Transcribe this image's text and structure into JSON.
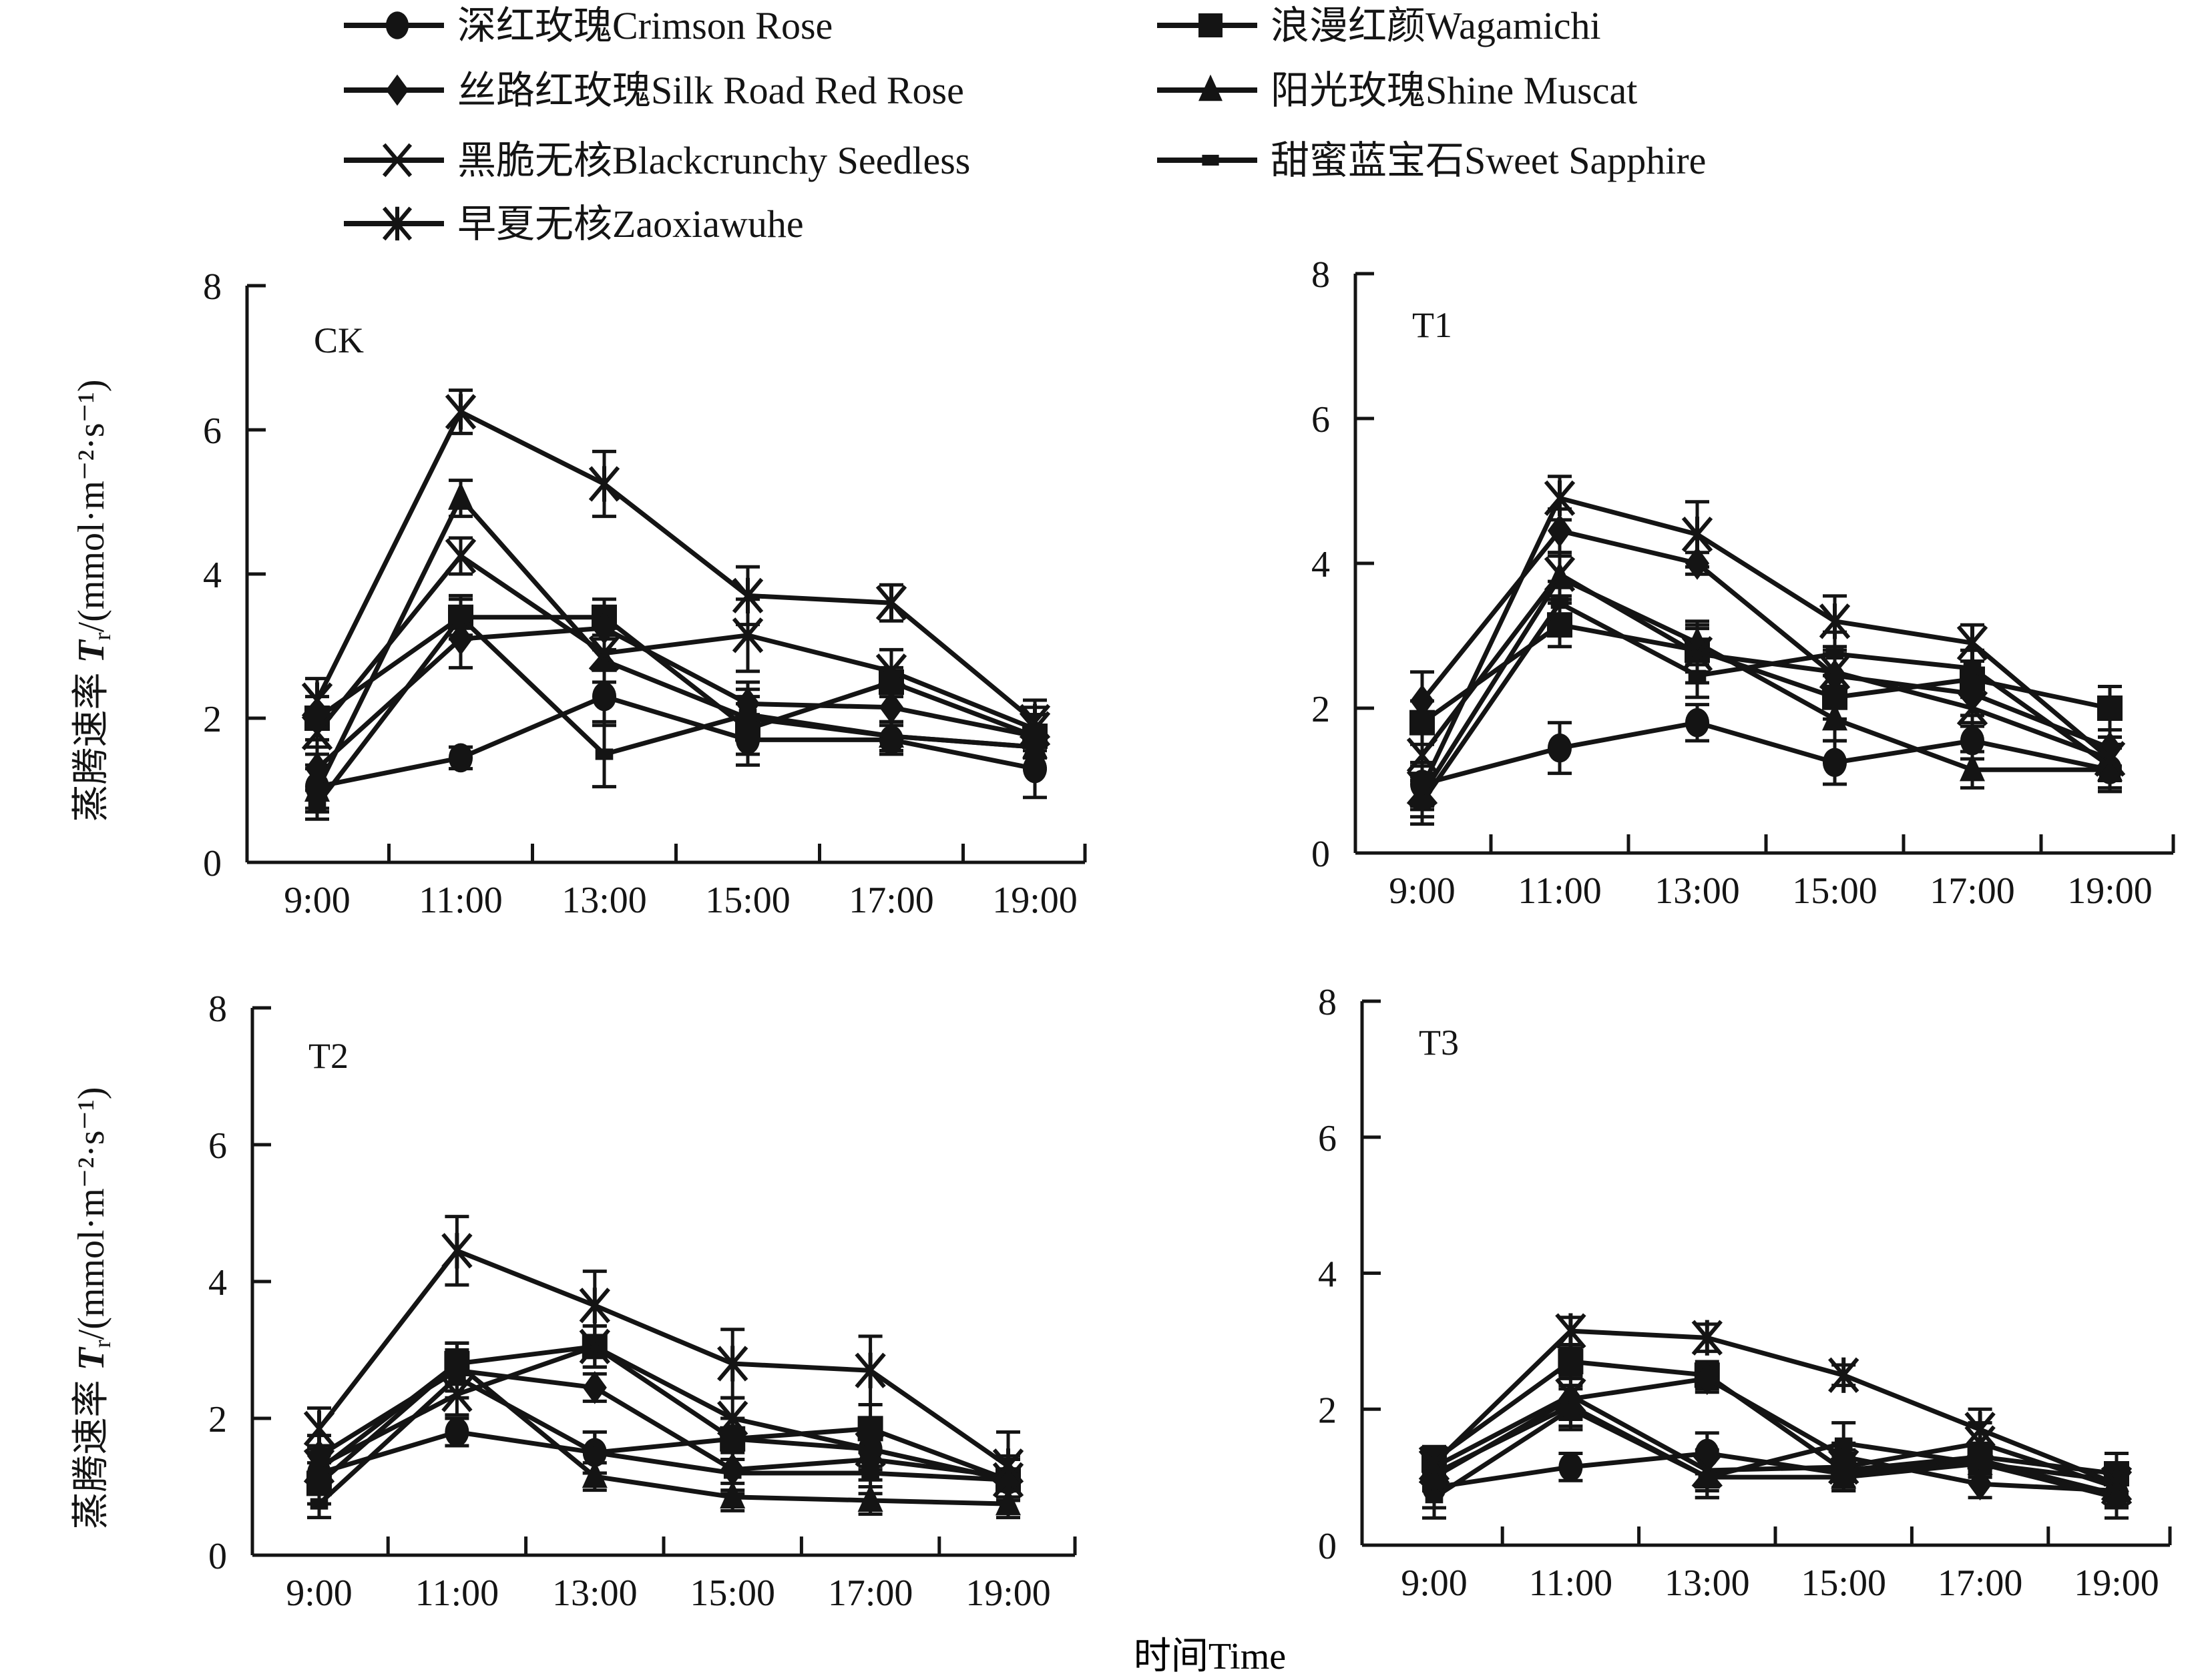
{
  "chart_data": {
    "type": "line",
    "figure_ylabel": "蒸腾速率 Tr/(mmol·m⁻²·s⁻¹)",
    "ylabel_cn": "蒸腾速率",
    "ylabel_symbol": "T",
    "ylabel_subscript": "r",
    "ylabel_units": "/(mmol·m⁻²·s⁻¹)",
    "xlabel": "时间Time",
    "x": [
      "9:00",
      "11:00",
      "13:00",
      "15:00",
      "17:00",
      "19:00"
    ],
    "ylim": [
      0,
      8
    ],
    "yticks": [
      0,
      2,
      4,
      6,
      8
    ],
    "grid": false,
    "legend_position": "top",
    "legend": [
      {
        "name": "深红玫瑰Crimson Rose",
        "marker": "circle"
      },
      {
        "name": "浪漫红颜Wagamichi",
        "marker": "square"
      },
      {
        "name": "丝路红玫瑰Silk Road Red Rose",
        "marker": "diamond"
      },
      {
        "name": "阳光玫瑰Shine Muscat",
        "marker": "triangle"
      },
      {
        "name": "黑脆无核Blackcrunchy Seedless",
        "marker": "x"
      },
      {
        "name": "甜蜜蓝宝石Sweet Sapphire",
        "marker": "dash"
      },
      {
        "name": "早夏无核Zaoxiawuhe",
        "marker": "asterisk"
      }
    ],
    "panels": [
      {
        "title": "CK",
        "series": [
          {
            "name": "深红玫瑰Crimson Rose",
            "values": [
              1.05,
              1.45,
              2.3,
              1.7,
              1.7,
              1.3
            ],
            "errors": [
              0.3,
              0.15,
              0.4,
              0.35,
              0.2,
              0.4
            ]
          },
          {
            "name": "浪漫红颜Wagamichi",
            "values": [
              2.0,
              3.4,
              3.4,
              1.85,
              2.5,
              1.75
            ],
            "errors": [
              0.3,
              0.25,
              0.25,
              0.35,
              0.2,
              0.3
            ]
          },
          {
            "name": "丝路红玫瑰Silk Road Red Rose",
            "values": [
              1.3,
              3.1,
              3.25,
              2.2,
              2.15,
              1.75
            ],
            "errors": [
              0.3,
              0.4,
              0.3,
              0.3,
              0.2,
              0.3
            ]
          },
          {
            "name": "阳光玫瑰Shine Muscat",
            "values": [
              1.0,
              5.05,
              2.8,
              2.0,
              1.75,
              1.6
            ],
            "errors": [
              0.3,
              0.25,
              0.3,
              0.3,
              0.2,
              0.3
            ]
          },
          {
            "name": "黑脆无核Blackcrunchy Seedless",
            "values": [
              1.8,
              4.25,
              2.9,
              3.15,
              2.65,
              1.85
            ],
            "errors": [
              0.3,
              0.25,
              0.4,
              0.5,
              0.3,
              0.3
            ]
          },
          {
            "name": "甜蜜蓝宝石Sweet Sapphire",
            "values": [
              0.8,
              3.4,
              1.5,
              2.05,
              1.75,
              1.6
            ],
            "errors": [
              0.2,
              0.3,
              0.45,
              0.35,
              0.2,
              0.3
            ]
          },
          {
            "name": "早夏无核Zaoxiawuhe",
            "values": [
              2.25,
              6.25,
              5.25,
              3.7,
              3.6,
              1.95
            ],
            "errors": [
              0.3,
              0.3,
              0.45,
              0.4,
              0.25,
              0.3
            ]
          }
        ]
      },
      {
        "title": "T1",
        "series": [
          {
            "name": "深红玫瑰Crimson Rose",
            "values": [
              0.95,
              1.45,
              1.8,
              1.25,
              1.55,
              1.15
            ],
            "errors": [
              0.3,
              0.35,
              0.25,
              0.3,
              0.25,
              0.3
            ]
          },
          {
            "name": "浪漫红颜Wagamichi",
            "values": [
              1.8,
              3.15,
              2.8,
              2.15,
              2.4,
              2.0
            ],
            "errors": [
              0.3,
              0.3,
              0.3,
              0.3,
              0.25,
              0.3
            ]
          },
          {
            "name": "丝路红玫瑰Silk Road Red Rose",
            "values": [
              2.1,
              4.45,
              4.0,
              2.45,
              2.2,
              1.45
            ],
            "errors": [
              0.4,
              0.3,
              0.15,
              0.3,
              0.3,
              0.25
            ]
          },
          {
            "name": "阳光玫瑰Shine Muscat",
            "values": [
              0.8,
              3.8,
              2.9,
              1.85,
              1.15,
              1.15
            ],
            "errors": [
              0.3,
              0.3,
              0.3,
              0.3,
              0.25,
              0.3
            ]
          },
          {
            "name": "黑脆无核Blackcrunchy Seedless",
            "values": [
              1.35,
              3.85,
              2.75,
              2.5,
              2.0,
              1.3
            ],
            "errors": [
              0.3,
              0.3,
              0.4,
              0.3,
              0.25,
              0.3
            ]
          },
          {
            "name": "甜蜜蓝宝石Sweet Sapphire",
            "values": [
              0.7,
              3.45,
              2.45,
              2.75,
              2.55,
              1.2
            ],
            "errors": [
              0.3,
              0.3,
              0.3,
              0.3,
              0.25,
              0.3
            ]
          },
          {
            "name": "早夏无核Zaoxiawuhe",
            "values": [
              0.9,
              4.9,
              4.4,
              3.2,
              2.9,
              1.3
            ],
            "errors": [
              0.3,
              0.3,
              0.45,
              0.35,
              0.25,
              0.3
            ]
          }
        ]
      },
      {
        "title": "T2",
        "series": [
          {
            "name": "深红玫瑰Crimson Rose",
            "values": [
              1.2,
              1.8,
              1.5,
              1.7,
              1.55,
              1.1
            ],
            "errors": [
              0.3,
              0.2,
              0.3,
              0.3,
              0.25,
              0.3
            ]
          },
          {
            "name": "浪漫红颜Wagamichi",
            "values": [
              1.05,
              2.8,
              3.05,
              1.7,
              1.85,
              1.1
            ],
            "errors": [
              0.3,
              0.3,
              0.3,
              0.3,
              0.35,
              0.3
            ]
          },
          {
            "name": "丝路红玫瑰Silk Road Red Rose",
            "values": [
              1.45,
              2.7,
              2.45,
              1.25,
              1.4,
              1.15
            ],
            "errors": [
              0.3,
              0.3,
              0.2,
              0.3,
              0.3,
              0.3
            ]
          },
          {
            "name": "阳光玫瑰Shine Muscat",
            "values": [
              1.25,
              2.8,
              1.15,
              0.85,
              0.8,
              0.75
            ],
            "errors": [
              0.3,
              0.3,
              0.2,
              0.2,
              0.2,
              0.2
            ]
          },
          {
            "name": "黑脆无核Blackcrunchy Seedless",
            "values": [
              1.3,
              2.35,
              3.05,
              2.0,
              1.55,
              1.1
            ],
            "errors": [
              0.3,
              0.3,
              0.3,
              0.3,
              0.3,
              0.3
            ]
          },
          {
            "name": "甜蜜蓝宝石Sweet Sapphire",
            "values": [
              0.75,
              2.6,
              1.5,
              1.2,
              1.2,
              1.1
            ],
            "errors": [
              0.2,
              0.3,
              0.3,
              0.3,
              0.3,
              0.3
            ]
          },
          {
            "name": "早夏无核Zaoxiawuhe",
            "values": [
              1.85,
              4.45,
              3.65,
              2.8,
              2.7,
              1.3
            ],
            "errors": [
              0.3,
              0.5,
              0.5,
              0.5,
              0.5,
              0.5
            ]
          }
        ]
      },
      {
        "title": "T3",
        "series": [
          {
            "name": "深红玫瑰Crimson Rose",
            "values": [
              0.85,
              1.15,
              1.35,
              1.05,
              1.25,
              0.75
            ],
            "errors": [
              0.3,
              0.2,
              0.3,
              0.2,
              0.2,
              0.2
            ]
          },
          {
            "name": "浪漫红颜Wagamichi",
            "values": [
              1.25,
              2.7,
              2.5,
              1.1,
              1.3,
              1.05
            ],
            "errors": [
              0.2,
              0.2,
              0.2,
              0.3,
              0.2,
              0.3
            ]
          },
          {
            "name": "丝路红玫瑰Silk Road Red Rose",
            "values": [
              1.0,
              2.15,
              2.45,
              1.3,
              0.9,
              0.8
            ],
            "errors": [
              0.2,
              0.3,
              0.2,
              0.2,
              0.2,
              0.2
            ]
          },
          {
            "name": "阳光玫瑰Shine Muscat",
            "values": [
              1.05,
              2.05,
              1.0,
              1.0,
              1.2,
              0.95
            ],
            "errors": [
              0.2,
              0.3,
              0.3,
              0.2,
              0.2,
              0.2
            ]
          },
          {
            "name": "黑脆无核Blackcrunchy Seedless",
            "values": [
              1.15,
              2.2,
              1.1,
              1.15,
              1.5,
              0.85
            ],
            "errors": [
              0.2,
              0.3,
              0.3,
              0.2,
              0.3,
              0.3
            ]
          },
          {
            "name": "甜蜜蓝宝石Sweet Sapphire",
            "values": [
              0.7,
              2.0,
              1.0,
              1.5,
              1.2,
              0.7
            ],
            "errors": [
              0.3,
              0.3,
              0.3,
              0.3,
              0.2,
              0.3
            ]
          },
          {
            "name": "早夏无核Zaoxiawuhe",
            "values": [
              1.2,
              3.15,
              3.05,
              2.5,
              1.7,
              0.9
            ],
            "errors": [
              0.2,
              0.2,
              0.2,
              0.15,
              0.3,
              0.3
            ]
          }
        ]
      }
    ]
  }
}
